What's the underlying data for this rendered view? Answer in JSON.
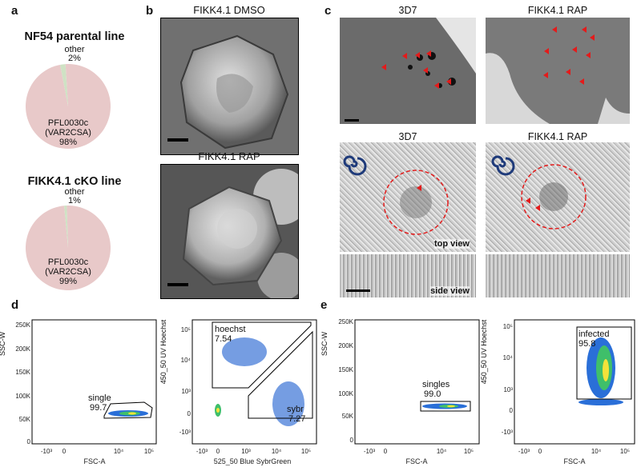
{
  "panels": {
    "a": {
      "label": "a"
    },
    "b": {
      "label": "b"
    },
    "c": {
      "label": "c"
    },
    "d": {
      "label": "d"
    },
    "e": {
      "label": "e"
    }
  },
  "panel_a": {
    "pie1": {
      "title": "NF54 parental line",
      "other_label": "other",
      "other_pct": "2%",
      "main_label1": "PFL0030c",
      "main_label2": "(VAR2CSA)",
      "main_pct": "98%"
    },
    "pie2": {
      "title": "FIKK4.1 cKO line",
      "other_label": "other",
      "other_pct": "1%",
      "main_label1": "PFL0030c",
      "main_label2": "(VAR2CSA)",
      "main_pct": "99%"
    }
  },
  "panel_b": {
    "top_title": "FIKK4.1 DMSO",
    "bottom_title": "FIKK4.1 RAP"
  },
  "panel_c": {
    "col1": "3D7",
    "col2": "FIKK4.1 RAP",
    "col1_b": "3D7",
    "col2_b": "FIKK4.1 RAP",
    "top_view": "top view",
    "side_view": "side view"
  },
  "panel_d": {
    "plot1": {
      "ylabel": "SSC-W",
      "xlabel": "FSC-A",
      "gate_name": "single",
      "gate_value": "99.7",
      "yticks": [
        "250K",
        "200K",
        "150K",
        "100K",
        "50K",
        "0"
      ],
      "xticks": [
        "-10³",
        "0",
        "10⁴",
        "10⁵"
      ]
    },
    "plot2": {
      "ylabel": "450_50 UV Hoechst",
      "xlabel": "525_50 Blue SybrGreen",
      "gate1_name": "hoechst",
      "gate1_value": "7.54",
      "gate2_name": "sybr",
      "gate2_value": "7.27",
      "yticks": [
        "10⁵",
        "10⁴",
        "10³",
        "0",
        "-10³"
      ],
      "xticks": [
        "-10³",
        "0",
        "10³",
        "10⁴",
        "10⁵"
      ]
    }
  },
  "panel_e": {
    "plot1": {
      "ylabel": "SSC-W",
      "xlabel": "FSC-A",
      "gate_name": "singles",
      "gate_value": "99.0",
      "yticks": [
        "250K",
        "200K",
        "150K",
        "100K",
        "50K",
        "0"
      ],
      "xticks": [
        "-10³",
        "0",
        "10⁴",
        "10⁵"
      ]
    },
    "plot2": {
      "ylabel": "450_50 UV Hoechst",
      "xlabel": "FSC-A",
      "gate_name": "infected",
      "gate_value": "95.8",
      "yticks": [
        "10⁵",
        "10⁴",
        "10³",
        "0",
        "-10³"
      ],
      "xticks": [
        "-10³",
        "0",
        "10⁴",
        "10⁵"
      ]
    }
  },
  "chart_data": [
    {
      "type": "pie",
      "title": "NF54 parental line",
      "categories": [
        "PFL0030c (VAR2CSA)",
        "other"
      ],
      "values": [
        98,
        2
      ],
      "colors": [
        "#e8c9c9",
        "#cfe2c4"
      ]
    },
    {
      "type": "pie",
      "title": "FIKK4.1 cKO line",
      "categories": [
        "PFL0030c (VAR2CSA)",
        "other"
      ],
      "values": [
        99,
        1
      ],
      "colors": [
        "#e8c9c9",
        "#cfe2c4"
      ]
    }
  ]
}
